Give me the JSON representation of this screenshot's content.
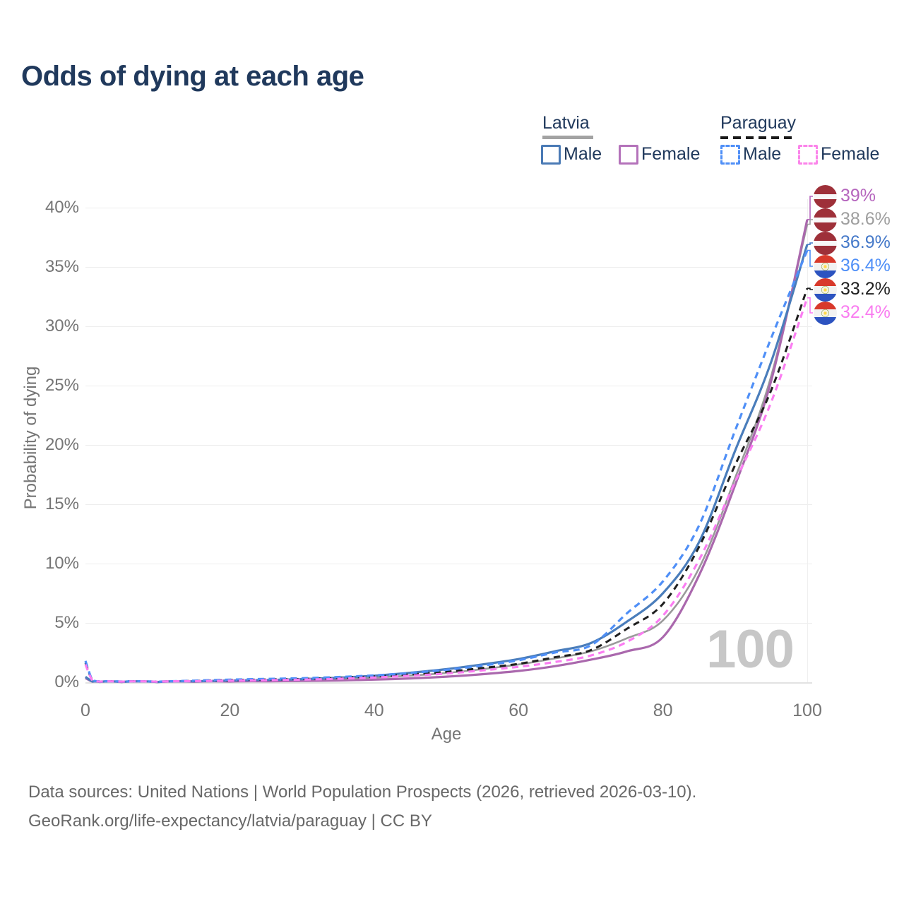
{
  "title": "Odds of dying at each age",
  "watermark": "100",
  "legend": {
    "groups": [
      {
        "country": "Latvia",
        "line_style": "solid",
        "line_color": "#9a9a9a",
        "items": [
          {
            "label": "Male",
            "color": "#4a7ab5",
            "dashed": false
          },
          {
            "label": "Female",
            "color": "#b472ba",
            "dashed": false
          }
        ]
      },
      {
        "country": "Paraguay",
        "line_style": "dashed",
        "line_color": "#1a1a1a",
        "items": [
          {
            "label": "Male",
            "color": "#4f8ff7",
            "dashed": true
          },
          {
            "label": "Female",
            "color": "#fb84ea",
            "dashed": true
          }
        ]
      }
    ]
  },
  "chart_data": {
    "type": "line",
    "title": "Odds of dying at each age",
    "xlabel": "Age",
    "ylabel": "Probability of dying",
    "xlim": [
      0,
      100
    ],
    "ylim": [
      0,
      42
    ],
    "x_ticks": [
      0,
      20,
      40,
      60,
      80,
      100
    ],
    "y_ticks": [
      0,
      5,
      10,
      15,
      20,
      25,
      30,
      35,
      40
    ],
    "y_tick_suffix": "%",
    "grid": "horizontal",
    "legend_position": "top-right",
    "ages": [
      0,
      1,
      2,
      5,
      10,
      15,
      20,
      25,
      30,
      35,
      40,
      45,
      50,
      55,
      60,
      65,
      70,
      75,
      80,
      85,
      90,
      95,
      100
    ],
    "series": [
      {
        "name": "Latvia Both sexes",
        "country": "Latvia",
        "sex": "Both",
        "style": "solid",
        "color": "#9a9a9a",
        "width": 2.6,
        "end_value": 38.6,
        "values": [
          0.4,
          0.05,
          0.025,
          0.025,
          0.02,
          0.06,
          0.1,
          0.14,
          0.19,
          0.27,
          0.39,
          0.56,
          0.78,
          1.1,
          1.5,
          2.0,
          2.6,
          3.7,
          5.2,
          9.6,
          17.2,
          25.8,
          38.6
        ]
      },
      {
        "name": "Latvia Female",
        "country": "Latvia",
        "sex": "Female",
        "style": "solid",
        "color": "#aa68ad",
        "width": 3.2,
        "end_value": 39.0,
        "values": [
          0.35,
          0.045,
          0.022,
          0.02,
          0.015,
          0.04,
          0.06,
          0.08,
          0.11,
          0.15,
          0.22,
          0.32,
          0.47,
          0.68,
          0.95,
          1.35,
          1.9,
          2.6,
          3.8,
          9.0,
          16.6,
          25.4,
          39.0
        ]
      },
      {
        "name": "Latvia Male",
        "country": "Latvia",
        "sex": "Male",
        "style": "solid",
        "color": "#4a7dbb",
        "width": 3.2,
        "end_value": 36.9,
        "values": [
          0.45,
          0.06,
          0.03,
          0.03,
          0.025,
          0.08,
          0.14,
          0.19,
          0.26,
          0.38,
          0.55,
          0.8,
          1.1,
          1.5,
          1.95,
          2.6,
          3.3,
          5.1,
          7.5,
          11.8,
          19.5,
          27.0,
          36.9
        ]
      },
      {
        "name": "Paraguay Both sexes",
        "country": "Paraguay",
        "sex": "Both",
        "style": "dashed",
        "color": "#1f1f1f",
        "width": 3.0,
        "end_value": 33.2,
        "values": [
          1.65,
          0.14,
          0.06,
          0.055,
          0.045,
          0.11,
          0.18,
          0.23,
          0.28,
          0.37,
          0.49,
          0.66,
          0.88,
          1.2,
          1.55,
          2.1,
          2.7,
          4.5,
          6.6,
          11.4,
          18.3,
          24.6,
          33.2
        ]
      },
      {
        "name": "Paraguay Male",
        "country": "Paraguay",
        "sex": "Male",
        "style": "dashed",
        "color": "#4f8ff7",
        "width": 3.2,
        "end_value": 36.4,
        "values": [
          1.8,
          0.15,
          0.07,
          0.06,
          0.05,
          0.13,
          0.22,
          0.28,
          0.34,
          0.44,
          0.58,
          0.78,
          1.05,
          1.4,
          1.85,
          2.5,
          3.1,
          5.8,
          8.5,
          13.2,
          21.2,
          29.0,
          36.4
        ]
      },
      {
        "name": "Paraguay Female",
        "country": "Paraguay",
        "sex": "Female",
        "style": "dashed",
        "color": "#fb7df2",
        "width": 3.2,
        "end_value": 32.4,
        "values": [
          1.5,
          0.12,
          0.05,
          0.05,
          0.04,
          0.09,
          0.13,
          0.17,
          0.22,
          0.29,
          0.4,
          0.55,
          0.73,
          1.0,
          1.3,
          1.7,
          2.25,
          3.4,
          5.6,
          10.3,
          16.9,
          23.6,
          32.4
        ]
      }
    ]
  },
  "end_labels": [
    {
      "text": "39%",
      "flag": "latvia",
      "color": "#b565bd",
      "series_index": 1
    },
    {
      "text": "38.6%",
      "flag": "latvia",
      "color": "#9e9e9e",
      "series_index": 0
    },
    {
      "text": "36.9%",
      "flag": "latvia",
      "color": "#4579c9",
      "series_index": 2
    },
    {
      "text": "36.4%",
      "flag": "paraguay",
      "color": "#4f8ff7",
      "series_index": 4
    },
    {
      "text": "33.2%",
      "flag": "paraguay",
      "color": "#1f1f1f",
      "series_index": 3
    },
    {
      "text": "32.4%",
      "flag": "paraguay",
      "color": "#f97cf0",
      "series_index": 5
    }
  ],
  "axes": {
    "x_label": "Age",
    "y_label": "Probability of dying"
  },
  "footer": {
    "line1": "Data sources: United Nations | World Population Prospects (2026, retrieved 2026-03-10).",
    "line2": "GeoRank.org/life-expectancy/latvia/paraguay | CC BY"
  }
}
